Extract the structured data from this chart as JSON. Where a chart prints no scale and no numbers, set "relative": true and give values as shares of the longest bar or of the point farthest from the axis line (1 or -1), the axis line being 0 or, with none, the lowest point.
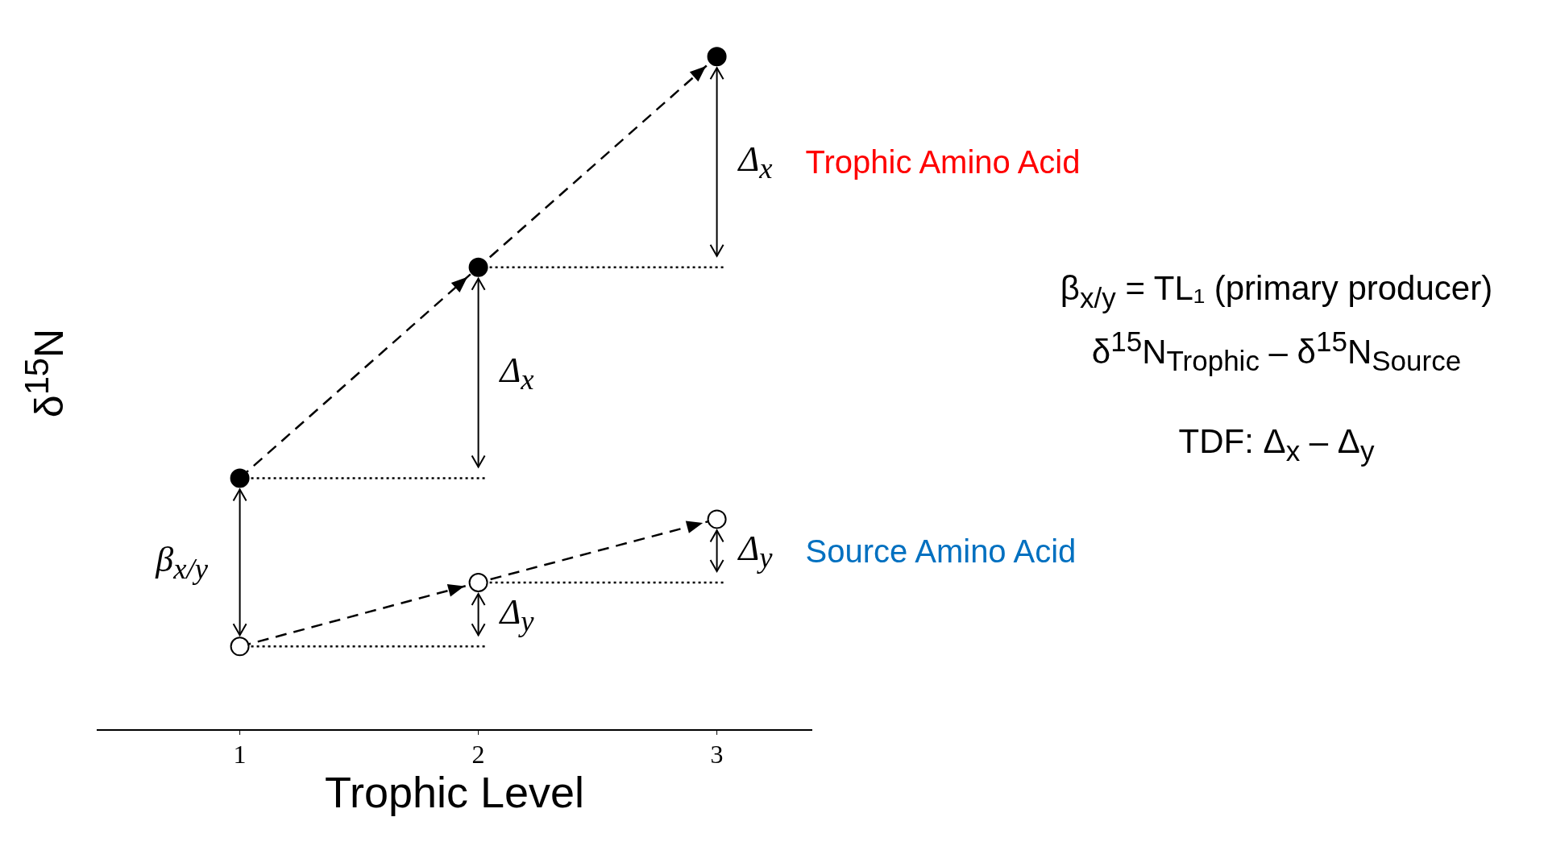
{
  "chart_data": {
    "type": "line",
    "relative": true,
    "xlabel": "Trophic Level",
    "ylabel": "δ$^{15}$N",
    "xlim": [
      0.4,
      3.4
    ],
    "xticks": [
      1,
      2,
      3
    ],
    "series": [
      {
        "name": "Trophic Amino Acid",
        "color": "#000000",
        "line_style": "dashed",
        "marker": "circle",
        "x": [
          1,
          2,
          3
        ],
        "values": [
          0.374,
          0.687,
          1
        ]
      },
      {
        "name": "Source Amino Acid",
        "color": "#000000",
        "line_style": "dashed",
        "marker": "circle",
        "x": [
          1,
          2,
          3
        ],
        "values": [
          0.124,
          0.219,
          0.313
        ]
      },
      {
        "color": "#000000",
        "line_style": "dotted",
        "marker": "none",
        "x": [
          1,
          2.04
        ],
        "values": [
          0.374,
          0.374
        ]
      },
      {
        "color": "#000000",
        "line_style": "dotted",
        "marker": "none",
        "x": [
          2,
          3.04
        ],
        "values": [
          0.687,
          0.687
        ]
      },
      {
        "color": "#000000",
        "line_style": "dotted",
        "marker": "none",
        "x": [
          1,
          2.04
        ],
        "values": [
          0.124,
          0.124
        ]
      },
      {
        "color": "#000000",
        "line_style": "dotted",
        "marker": "none",
        "x": [
          2,
          3.04
        ],
        "values": [
          0.219,
          0.219
        ]
      }
    ],
    "annotations": [
      "Δ$_{x}$",
      "Δ$_{x}$",
      "Δ$_{y}$",
      "Δ$_{y}$",
      "β$_{x/y}$",
      "β$_{x/y}$ = TL₁ (primary producer)",
      "δ$^{15}$N$_{Trophic}$ – δ$^{15}$N$_{Source}$",
      "TDF: Δ$_{x}$ – Δ$_{y}$"
    ]
  }
}
